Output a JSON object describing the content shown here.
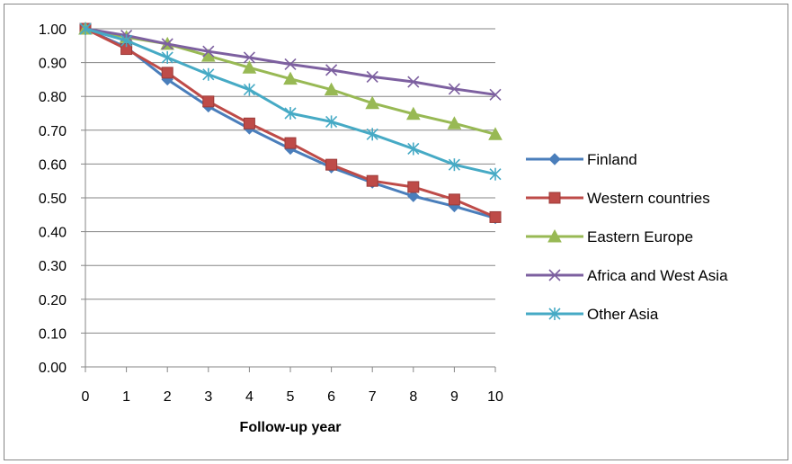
{
  "chart_data": {
    "type": "line",
    "title": "",
    "xlabel": "Follow-up year",
    "ylabel": "",
    "x": [
      0,
      1,
      2,
      3,
      4,
      5,
      6,
      7,
      8,
      9,
      10
    ],
    "xlim": [
      0,
      10
    ],
    "ylim": [
      0,
      1
    ],
    "y_tick_values": [
      0,
      0.1,
      0.2,
      0.3,
      0.4,
      0.5,
      0.6,
      0.7,
      0.8,
      0.9,
      1.0
    ],
    "y_tick_labels": [
      "0.00",
      "0.10",
      "0.20",
      "0.30",
      "0.40",
      "0.50",
      "0.60",
      "0.70",
      "0.80",
      "0.90",
      "1.00"
    ],
    "x_tick_labels": [
      "0",
      "1",
      "2",
      "3",
      "4",
      "5",
      "6",
      "7",
      "8",
      "9",
      "10"
    ],
    "grid": "horizontal",
    "legend_position": "right",
    "series": [
      {
        "name": "Finland",
        "color": "#4a7ebb",
        "marker": "diamond",
        "values": [
          1.0,
          0.945,
          0.85,
          0.77,
          0.705,
          0.645,
          0.59,
          0.545,
          0.505,
          0.475,
          0.44
        ]
      },
      {
        "name": "Western countries",
        "color": "#be4b48",
        "marker": "square",
        "values": [
          1.0,
          0.94,
          0.87,
          0.785,
          0.72,
          0.662,
          0.598,
          0.55,
          0.532,
          0.495,
          0.443
        ]
      },
      {
        "name": "Eastern Europe",
        "color": "#98b954",
        "marker": "triangle",
        "values": [
          1.0,
          0.975,
          0.955,
          0.92,
          0.885,
          0.852,
          0.82,
          0.78,
          0.748,
          0.72,
          0.688
        ]
      },
      {
        "name": "Africa and West Asia",
        "color": "#7d60a0",
        "marker": "x",
        "values": [
          1.0,
          0.98,
          0.955,
          0.933,
          0.915,
          0.895,
          0.878,
          0.858,
          0.843,
          0.822,
          0.805
        ]
      },
      {
        "name": "Other Asia",
        "color": "#46aac5",
        "marker": "star",
        "values": [
          1.0,
          0.965,
          0.915,
          0.865,
          0.82,
          0.75,
          0.725,
          0.688,
          0.645,
          0.598,
          0.57
        ]
      }
    ]
  }
}
